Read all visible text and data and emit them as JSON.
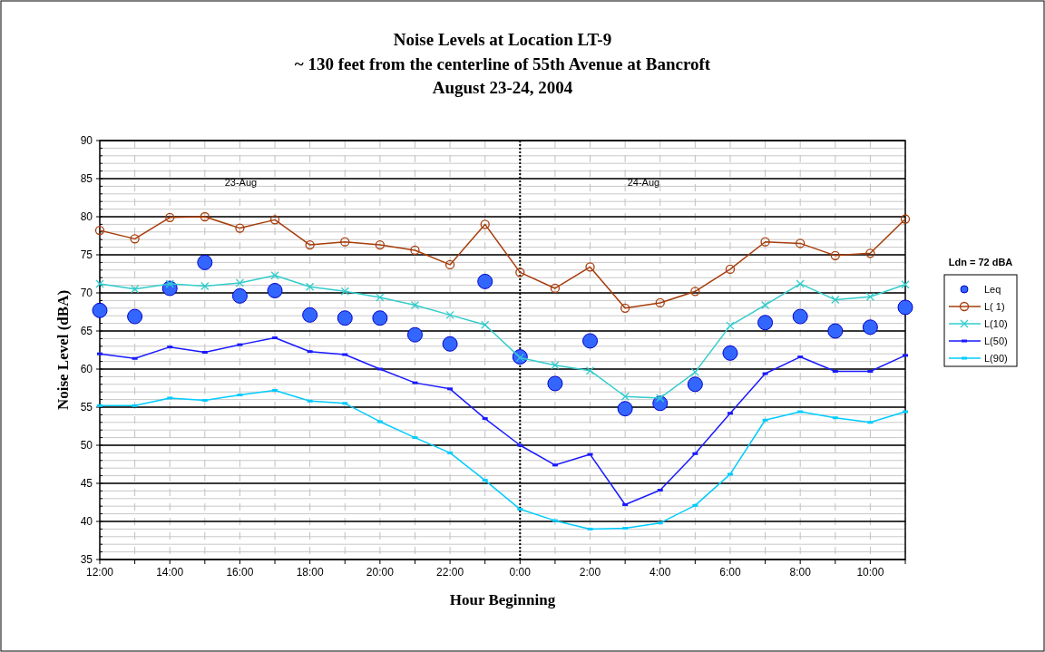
{
  "chart_data": {
    "type": "line",
    "title": "Noise Levels at Location LT-9",
    "subtitle": "~ 130 feet from the centerline of 55th Avenue at Bancroft\nAugust 23-24, 2004",
    "xlabel": "Hour Beginning",
    "ylabel": "Noise Level (dBA)",
    "legend_title": "Ldn = 72 dBA",
    "categories": [
      "12:00",
      null,
      "14:00",
      null,
      "16:00",
      null,
      "18:00",
      null,
      "20:00",
      null,
      "22:00",
      null,
      "0:00",
      null,
      "2:00",
      null,
      "4:00",
      null,
      "6:00",
      null,
      "8:00",
      null,
      "10:00",
      null
    ],
    "series": [
      {
        "name": "Leq",
        "type": "scatter",
        "marker": "circle",
        "color": "#3366ff",
        "values": [
          67.7,
          66.9,
          70.6,
          74.0,
          69.6,
          70.3,
          67.1,
          66.7,
          66.7,
          64.5,
          63.3,
          71.5,
          61.6,
          58.1,
          63.7,
          54.8,
          55.5,
          58.0,
          62.1,
          66.1,
          66.9,
          65.0,
          65.5,
          68.1
        ]
      },
      {
        "name": "L( 1)",
        "marker": "circle",
        "color": "#a63c0a",
        "values": [
          78.2,
          77.1,
          79.9,
          80.0,
          78.5,
          79.6,
          76.3,
          76.7,
          76.3,
          75.6,
          73.7,
          79.0,
          72.7,
          70.6,
          73.4,
          68.0,
          68.7,
          70.2,
          73.1,
          76.7,
          76.5,
          74.9,
          75.2,
          79.7
        ]
      },
      {
        "name": "L(10)",
        "marker": "cross",
        "color": "#33cccc",
        "values": [
          71.2,
          70.5,
          71.2,
          70.9,
          71.3,
          72.3,
          70.8,
          70.2,
          69.4,
          68.4,
          67.1,
          65.8,
          61.5,
          60.5,
          59.8,
          56.4,
          56.2,
          59.6,
          65.7,
          68.4,
          71.2,
          69.1,
          69.5,
          71.1
        ]
      },
      {
        "name": "L(50)",
        "marker": "square",
        "color": "#1a1aff",
        "values": [
          62.0,
          61.4,
          62.9,
          62.2,
          63.2,
          64.1,
          62.3,
          61.9,
          60.0,
          58.2,
          57.4,
          53.5,
          50.0,
          47.4,
          48.8,
          42.2,
          44.1,
          48.9,
          54.2,
          59.4,
          61.6,
          59.7,
          59.7,
          61.8
        ]
      },
      {
        "name": "L(90)",
        "marker": "square",
        "color": "#00ccff",
        "values": [
          55.2,
          55.2,
          56.2,
          55.9,
          56.6,
          57.2,
          55.8,
          55.5,
          53.1,
          51.0,
          49.0,
          45.4,
          41.6,
          40.1,
          39.0,
          39.1,
          39.8,
          42.1,
          46.2,
          53.3,
          54.4,
          53.6,
          53.0,
          54.4
        ]
      }
    ],
    "ylim": [
      35,
      90
    ],
    "yticks": [
      35,
      40,
      45,
      50,
      55,
      60,
      65,
      70,
      75,
      80,
      85,
      90
    ],
    "grid": true,
    "legend": "right",
    "ref_lines": [
      {
        "axis": "x",
        "value": "0:00",
        "color": "#000000",
        "line_style": "dotted"
      }
    ],
    "annotations": [
      "23-Aug",
      "24-Aug"
    ]
  }
}
